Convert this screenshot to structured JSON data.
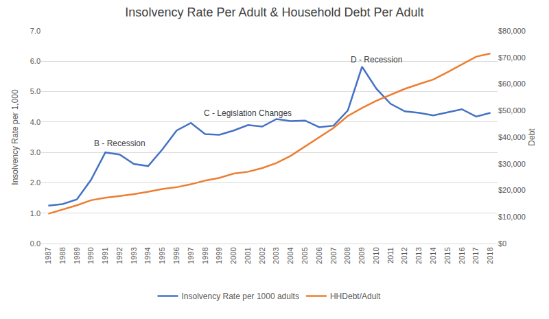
{
  "chart_data": {
    "type": "line",
    "title": "Insolvency Rate Per Adult & Household Debt Per Adult",
    "y_label": "Insolvency Rate per 1,000",
    "y2_label": "Debt",
    "categories": [
      "1987",
      "1988",
      "1989",
      "1990",
      "1991",
      "1992",
      "1993",
      "1994",
      "1995",
      "1996",
      "1997",
      "1998",
      "1999",
      "2000",
      "2001",
      "2002",
      "2003",
      "2004",
      "2005",
      "2006",
      "2007",
      "2008",
      "2009",
      "2010",
      "2011",
      "2012",
      "2013",
      "2014",
      "2015",
      "2016",
      "2017",
      "2018"
    ],
    "series": [
      {
        "name": "Insolvency Rate per 1000 adults",
        "color": "#4472c4",
        "axis": "y",
        "values": [
          1.25,
          1.3,
          1.45,
          2.1,
          3.0,
          2.93,
          2.62,
          2.55,
          3.1,
          3.72,
          3.97,
          3.6,
          3.58,
          3.72,
          3.9,
          3.85,
          4.1,
          4.03,
          4.05,
          3.83,
          3.88,
          4.38,
          5.82,
          5.1,
          4.6,
          4.35,
          4.3,
          4.22,
          4.32,
          4.42,
          4.18,
          4.3
        ]
      },
      {
        "name": "HHDebt/Adult",
        "color": "#ed7d31",
        "axis": "y2",
        "values": [
          11200,
          12800,
          14400,
          16300,
          17200,
          17900,
          18600,
          19500,
          20500,
          21200,
          22300,
          23700,
          24700,
          26300,
          27000,
          28400,
          30300,
          33000,
          36500,
          40000,
          43500,
          48000,
          51000,
          53700,
          56000,
          58200,
          60000,
          61700,
          64500,
          67400,
          70300,
          71500
        ]
      }
    ],
    "ylim": [
      0,
      7
    ],
    "yticks": [
      {
        "value": 0,
        "label": "0.0"
      },
      {
        "value": 1,
        "label": "1.0"
      },
      {
        "value": 2,
        "label": "2.0"
      },
      {
        "value": 3,
        "label": "3.0"
      },
      {
        "value": 4,
        "label": "4.0"
      },
      {
        "value": 5,
        "label": "5.0"
      },
      {
        "value": 6,
        "label": "6.0"
      },
      {
        "value": 7,
        "label": "7.0"
      }
    ],
    "y2lim": [
      0,
      80000
    ],
    "y2ticks": [
      {
        "value": 0,
        "label": "$0"
      },
      {
        "value": 10000,
        "label": "$10,000"
      },
      {
        "value": 20000,
        "label": "$20,000"
      },
      {
        "value": 30000,
        "label": "$30,000"
      },
      {
        "value": 40000,
        "label": "$40,000"
      },
      {
        "value": 50000,
        "label": "$50,000"
      },
      {
        "value": 60000,
        "label": "$60,000"
      },
      {
        "value": 70000,
        "label": "$70,000"
      },
      {
        "value": 80000,
        "label": "$80,000"
      }
    ],
    "annotations": [
      {
        "text": "B - Recession",
        "x": "1992",
        "y": 3.3
      },
      {
        "text": "C - Legislation Changes",
        "x": "2001",
        "y": 4.3
      },
      {
        "text": "D - Recession",
        "x": "2010",
        "y": 6.05
      }
    ],
    "grid": true,
    "legend": "bottom"
  }
}
